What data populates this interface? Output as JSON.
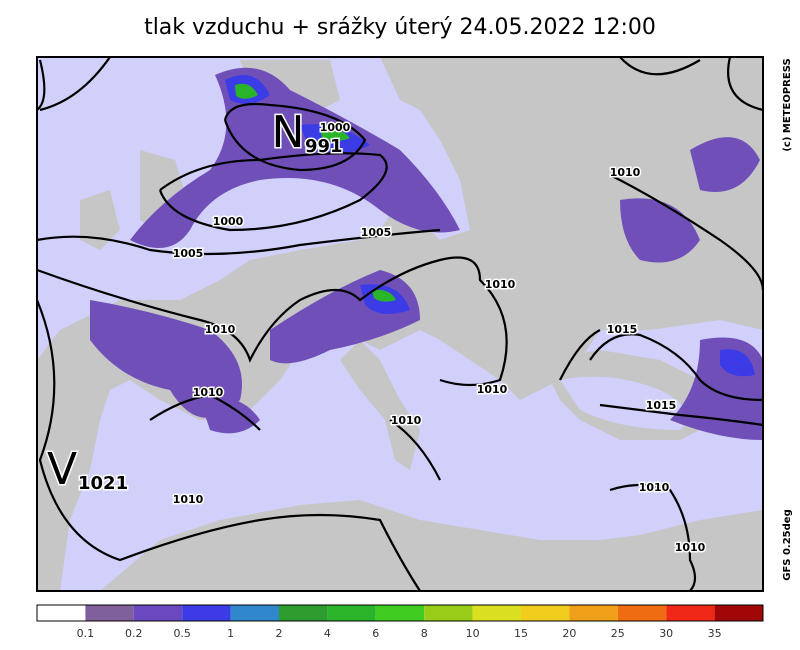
{
  "title": "tlak vzduchu + srážky   úterý 24.05.2022 12:00",
  "credit": "(c) METEOPRESS",
  "model": "GFS  0.25deg",
  "centers": [
    {
      "letter": "N",
      "value": "991"
    },
    {
      "letter": "V",
      "value": "1021"
    }
  ],
  "isobar_labels": [
    "1000",
    "1000",
    "1005",
    "1005",
    "1010",
    "1010",
    "1010",
    "1015",
    "1010",
    "1010",
    "1010",
    "1015",
    "1010",
    "1010",
    "1010"
  ],
  "colorbar": {
    "colors": [
      "#ffffff",
      "#80609c",
      "#6a48c0",
      "#3c3ce6",
      "#3088cc",
      "#2e9c2e",
      "#2ab42a",
      "#40cc20",
      "#98cc18",
      "#d8e020",
      "#f0cc1c",
      "#f0a018",
      "#f06c10",
      "#f02818",
      "#a00808"
    ],
    "labels": [
      "0.1",
      "0.2",
      "0.5",
      "1",
      "2",
      "4",
      "6",
      "8",
      "10",
      "15",
      "20",
      "25",
      "30",
      "35"
    ]
  }
}
